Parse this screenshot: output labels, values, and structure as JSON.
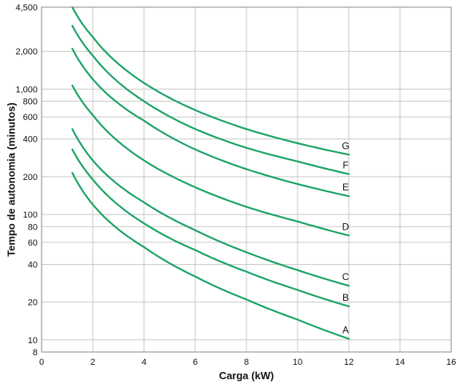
{
  "chart_data": {
    "type": "line",
    "title": "",
    "xlabel": "Carga (kW)",
    "ylabel": "Tempo de autonomia (minutos)",
    "xlim": [
      0,
      16
    ],
    "ylim": [
      8,
      4500
    ],
    "yscale": "log",
    "grid": true,
    "legend": "none",
    "series_color": "#1aa364",
    "grid_color": "#c8c8c8",
    "x_ticks": [
      {
        "value": 0,
        "label": "0"
      },
      {
        "value": 2,
        "label": "2"
      },
      {
        "value": 4,
        "label": "4"
      },
      {
        "value": 6,
        "label": "6"
      },
      {
        "value": 8,
        "label": "8"
      },
      {
        "value": 10,
        "label": "10"
      },
      {
        "value": 12,
        "label": "12"
      },
      {
        "value": 14,
        "label": "14"
      },
      {
        "value": 16,
        "label": "16"
      }
    ],
    "y_ticks": [
      {
        "value": 8,
        "label": "8"
      },
      {
        "value": 10,
        "label": "10"
      },
      {
        "value": 20,
        "label": "20"
      },
      {
        "value": 40,
        "label": "40"
      },
      {
        "value": 60,
        "label": "60"
      },
      {
        "value": 80,
        "label": "80"
      },
      {
        "value": 100,
        "label": "100"
      },
      {
        "value": 200,
        "label": "200"
      },
      {
        "value": 400,
        "label": "400"
      },
      {
        "value": 600,
        "label": "600"
      },
      {
        "value": 800,
        "label": "800"
      },
      {
        "value": 1000,
        "label": "1,000"
      },
      {
        "value": 2000,
        "label": "2,000"
      },
      {
        "value": 4500,
        "label": "4,500"
      }
    ],
    "series": [
      {
        "name": "A",
        "x": [
          1.2,
          2,
          4,
          6,
          8,
          10,
          12
        ],
        "values": [
          215,
          120,
          55,
          32,
          21,
          14.5,
          10.2
        ]
      },
      {
        "name": "B",
        "x": [
          1.2,
          2,
          4,
          6,
          8,
          10,
          12
        ],
        "values": [
          330,
          190,
          85,
          52,
          35,
          25,
          18.5
        ]
      },
      {
        "name": "C",
        "x": [
          1.2,
          2,
          4,
          6,
          8,
          10,
          12
        ],
        "values": [
          480,
          270,
          125,
          75,
          50,
          36,
          27
        ]
      },
      {
        "name": "D",
        "x": [
          1.2,
          2,
          4,
          6,
          8,
          10,
          12
        ],
        "values": [
          1070,
          620,
          270,
          165,
          115,
          88,
          68
        ]
      },
      {
        "name": "E",
        "x": [
          1.2,
          2,
          4,
          6,
          8,
          10,
          12
        ],
        "values": [
          2100,
          1200,
          560,
          330,
          230,
          175,
          140
        ]
      },
      {
        "name": "F",
        "x": [
          1.2,
          2,
          4,
          6,
          8,
          10,
          12
        ],
        "values": [
          3200,
          1850,
          800,
          480,
          340,
          265,
          210
        ]
      },
      {
        "name": "G",
        "x": [
          1.2,
          2,
          4,
          6,
          8,
          10,
          12
        ],
        "values": [
          4500,
          2600,
          1120,
          680,
          480,
          370,
          300
        ]
      }
    ]
  }
}
